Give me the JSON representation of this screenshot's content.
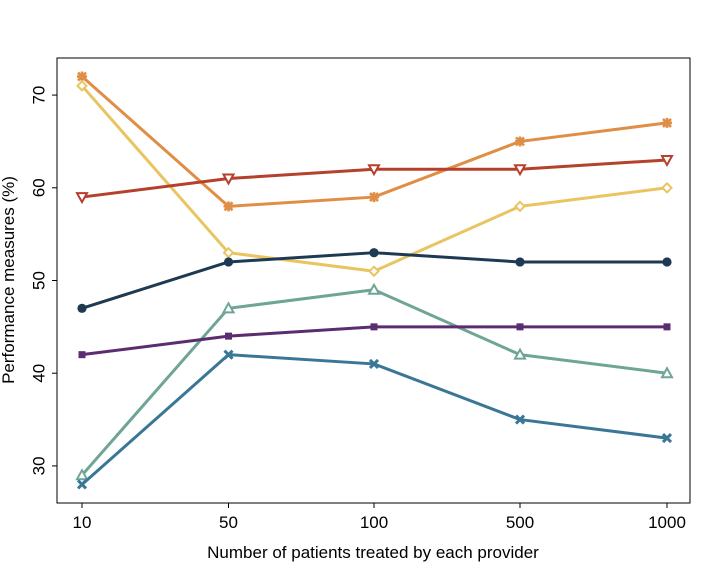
{
  "chart_data": {
    "type": "line",
    "title": "",
    "xlabel": "Number of patients treated by each provider",
    "ylabel": "Performance measures (%)",
    "categories": [
      "10",
      "50",
      "100",
      "500",
      "1000"
    ],
    "ylim": [
      26,
      74
    ],
    "yticks": [
      30,
      40,
      50,
      60,
      70
    ],
    "grid": false,
    "series": [
      {
        "color": "#e08e45",
        "marker": "plus-cross",
        "values": [
          72,
          58,
          59,
          65,
          67
        ]
      },
      {
        "color": "#e9c461",
        "marker": "diamond",
        "values": [
          71,
          53,
          51,
          58,
          60
        ]
      },
      {
        "color": "#b5402c",
        "marker": "triangle-down",
        "values": [
          59,
          61,
          62,
          62,
          63
        ]
      },
      {
        "color": "#1e3a52",
        "marker": "circle",
        "values": [
          47,
          52,
          53,
          52,
          52
        ]
      },
      {
        "color": "#6fa596",
        "marker": "triangle-up",
        "values": [
          29,
          47,
          49,
          42,
          40
        ]
      },
      {
        "color": "#5b2c6f",
        "marker": "square",
        "values": [
          42,
          44,
          45,
          45,
          45
        ]
      },
      {
        "color": "#3a7797",
        "marker": "x",
        "values": [
          28,
          42,
          41,
          35,
          33
        ]
      }
    ]
  }
}
